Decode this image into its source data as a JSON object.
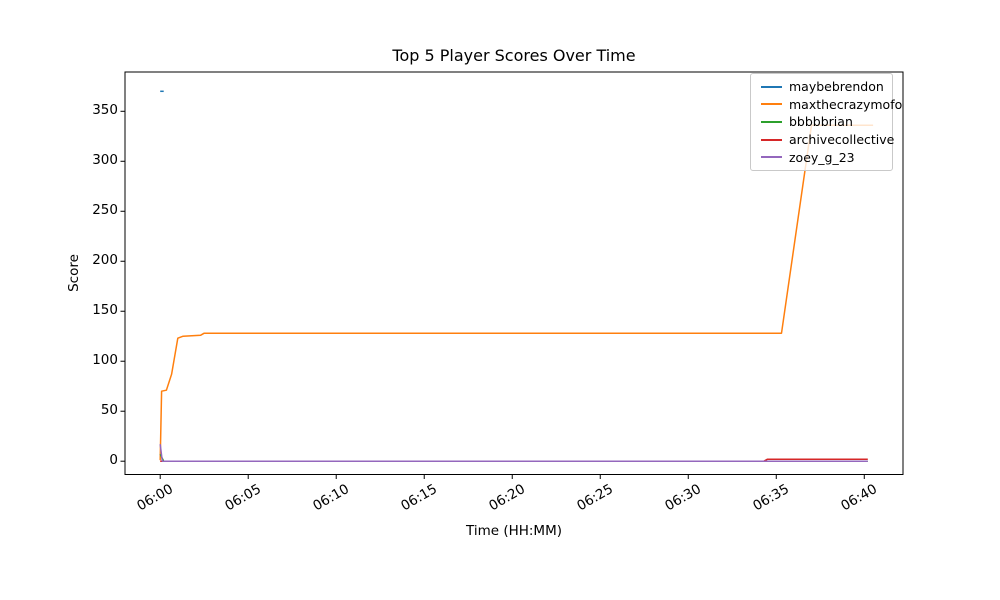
{
  "figure": {
    "background": "#ffffff",
    "frame_color": "#000000"
  },
  "chart_data": {
    "type": "line",
    "title": "Top 5 Player Scores Over Time",
    "xlabel": "Time (HH:MM)",
    "ylabel": "Score",
    "x_unit": "minutes_after_06:00",
    "xlim": [
      -2,
      42.2
    ],
    "ylim": [
      -13.3,
      389.3
    ],
    "grid": false,
    "legend_position": "upper right",
    "xticks": {
      "positions": [
        0,
        5,
        10,
        15,
        20,
        25,
        30,
        35,
        40
      ],
      "labels": [
        "06:00",
        "06:05",
        "06:10",
        "06:15",
        "06:20",
        "06:25",
        "06:30",
        "06:35",
        "06:40"
      ],
      "rotation_deg": 30
    },
    "yticks": {
      "positions": [
        0,
        50,
        100,
        150,
        200,
        250,
        300,
        350
      ],
      "labels": [
        "0",
        "50",
        "100",
        "150",
        "200",
        "250",
        "300",
        "350"
      ]
    },
    "series": [
      {
        "name": "maybebrendon",
        "color": "#1f77b4",
        "points": [
          [
            0,
            370
          ],
          [
            0.2,
            370
          ]
        ]
      },
      {
        "name": "maxthecrazymofo",
        "color": "#ff7f0e",
        "points": [
          [
            0,
            1
          ],
          [
            0.08,
            70
          ],
          [
            0.35,
            71
          ],
          [
            0.65,
            87
          ],
          [
            1.0,
            123
          ],
          [
            1.3,
            125
          ],
          [
            2.3,
            126
          ],
          [
            2.5,
            128
          ],
          [
            35.3,
            128
          ],
          [
            37.0,
            336
          ],
          [
            40.5,
            336
          ]
        ]
      },
      {
        "name": "bbbbbrian",
        "color": "#2ca02c",
        "points": [
          [
            0,
            7
          ],
          [
            0.2,
            0
          ],
          [
            40.2,
            0
          ]
        ]
      },
      {
        "name": "archivecollective",
        "color": "#d62728",
        "points": [
          [
            0,
            0
          ],
          [
            34.3,
            0
          ],
          [
            34.5,
            2
          ],
          [
            40.2,
            2
          ]
        ]
      },
      {
        "name": "zoey_g_23",
        "color": "#9467bd",
        "points": [
          [
            0,
            17
          ],
          [
            0.12,
            0
          ],
          [
            40.2,
            0
          ]
        ]
      }
    ],
    "line_width": 1.5
  }
}
